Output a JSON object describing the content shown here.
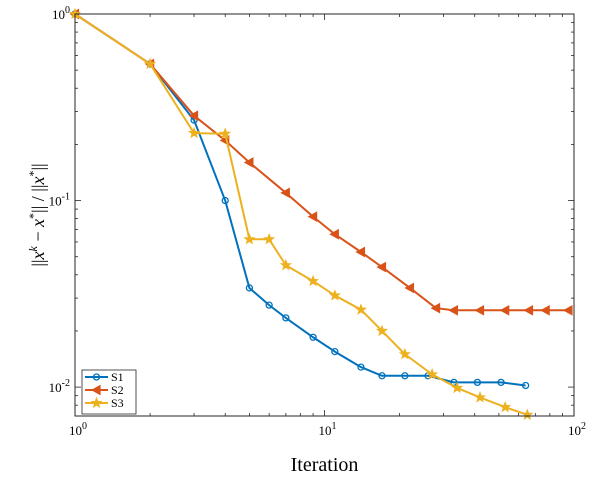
{
  "chart_data": {
    "type": "line",
    "xscale": "log",
    "yscale": "log",
    "xlim": [
      1,
      100
    ],
    "ylim": [
      0.007,
      1
    ],
    "xlabel": "Iteration",
    "ylabel": "||x^k − x*|| / ||x*||",
    "x_ticks": [
      {
        "value": 1,
        "base": "10",
        "exp": "0"
      },
      {
        "value": 10,
        "base": "10",
        "exp": "1"
      },
      {
        "value": 100,
        "base": "10",
        "exp": "2"
      }
    ],
    "y_ticks": [
      {
        "value": 0.01,
        "base": "10",
        "exp": "-2"
      },
      {
        "value": 0.1,
        "base": "10",
        "exp": "-1"
      },
      {
        "value": 1,
        "base": "10",
        "exp": "0"
      }
    ],
    "legend_position": "bottom-left",
    "series": [
      {
        "name": "S1",
        "color": "#0072BD",
        "marker": "circle",
        "x": [
          1,
          2,
          3,
          4,
          5,
          6,
          7,
          9,
          11,
          14,
          17,
          21,
          26,
          33,
          41,
          51,
          64
        ],
        "y": [
          1.0,
          0.54,
          0.27,
          0.1,
          0.034,
          0.0275,
          0.0235,
          0.0185,
          0.0155,
          0.0128,
          0.0115,
          0.0115,
          0.0115,
          0.0106,
          0.0106,
          0.0106,
          0.0102
        ]
      },
      {
        "name": "S2",
        "color": "#D95319",
        "marker": "triangle-left",
        "x": [
          1,
          2,
          3,
          4,
          5,
          7,
          9,
          11,
          14,
          17,
          22,
          28,
          33,
          42,
          53,
          66,
          77,
          95
        ],
        "y": [
          1.0,
          0.54,
          0.285,
          0.21,
          0.16,
          0.11,
          0.082,
          0.066,
          0.053,
          0.044,
          0.034,
          0.0265,
          0.0258,
          0.0258,
          0.0258,
          0.0258,
          0.0258,
          0.0258
        ]
      },
      {
        "name": "S3",
        "color": "#EDB120",
        "marker": "star",
        "x": [
          1,
          2,
          3,
          4,
          5,
          6,
          7,
          9,
          11,
          14,
          17,
          21,
          27,
          34,
          42,
          53,
          65
        ],
        "y": [
          1.0,
          0.54,
          0.23,
          0.228,
          0.062,
          0.062,
          0.045,
          0.037,
          0.031,
          0.026,
          0.02,
          0.015,
          0.0117,
          0.0099,
          0.0088,
          0.0078,
          0.0071
        ]
      }
    ]
  }
}
